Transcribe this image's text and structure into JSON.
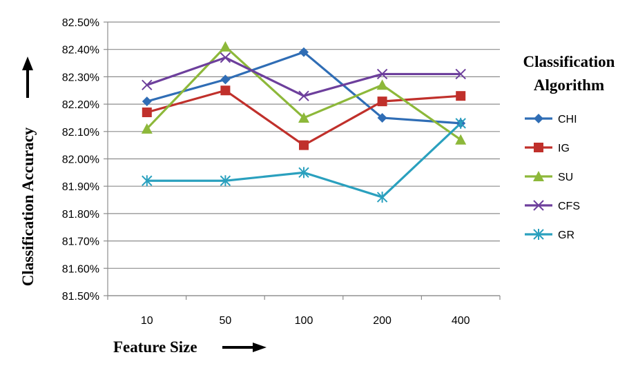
{
  "chart_data": {
    "type": "line",
    "xlabel": "Feature Size",
    "ylabel": "Classification Accuracy",
    "x_arrow": "right-arrow",
    "y_arrow": "up-arrow",
    "categories": [
      "10",
      "50",
      "100",
      "200",
      "400"
    ],
    "ylim": [
      81.5,
      82.5
    ],
    "ytick_values": [
      81.5,
      81.6,
      81.7,
      81.8,
      81.9,
      82.0,
      82.1,
      82.2,
      82.3,
      82.4,
      82.5
    ],
    "ytick_labels": [
      "81.50%",
      "81.60%",
      "81.70%",
      "81.80%",
      "81.90%",
      "82.00%",
      "82.10%",
      "82.20%",
      "82.30%",
      "82.40%",
      "82.50%"
    ],
    "grid": "horizontal",
    "legend": {
      "title_line1": "Classification",
      "title_line2": "Algorithm",
      "position": "right"
    },
    "series": [
      {
        "name": "CHI",
        "marker": "diamond",
        "color": "#2f6db5",
        "values": [
          82.21,
          82.29,
          82.39,
          82.15,
          82.13
        ]
      },
      {
        "name": "IG",
        "marker": "square",
        "color": "#c0302b",
        "values": [
          82.17,
          82.25,
          82.05,
          82.21,
          82.23
        ]
      },
      {
        "name": "SU",
        "marker": "triangle",
        "color": "#8db83a",
        "values": [
          82.11,
          82.41,
          82.15,
          82.27,
          82.07
        ]
      },
      {
        "name": "CFS",
        "marker": "x",
        "color": "#6d3f9c",
        "values": [
          82.27,
          82.37,
          82.23,
          82.31,
          82.31
        ]
      },
      {
        "name": "GR",
        "marker": "star",
        "color": "#2aa0be",
        "values": [
          81.92,
          81.92,
          81.95,
          81.86,
          82.13
        ]
      }
    ]
  }
}
